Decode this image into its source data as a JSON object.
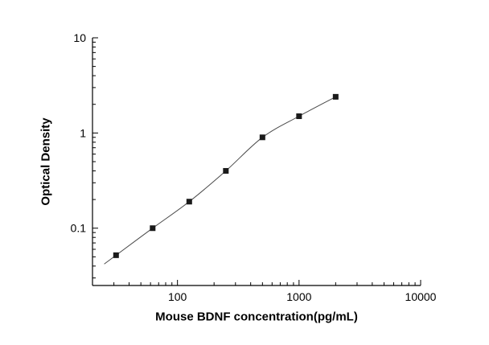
{
  "chart_data": {
    "type": "scatter",
    "title": "",
    "xlabel": "Mouse BDNF concentration(pg/mL)",
    "ylabel": "Optical Density",
    "x_scale": "log",
    "y_scale": "log",
    "xlim": [
      20,
      10000
    ],
    "ylim": [
      0.025,
      10
    ],
    "x_major_ticks": [
      100,
      1000,
      10000
    ],
    "x_tick_labels": [
      "100",
      "1000",
      "10000"
    ],
    "y_major_ticks": [
      0.1,
      1,
      10
    ],
    "y_tick_labels": [
      "0.1",
      "1",
      "10"
    ],
    "grid": "off",
    "legend": "none",
    "points": [
      {
        "x": 31.25,
        "y": 0.052
      },
      {
        "x": 62.5,
        "y": 0.1
      },
      {
        "x": 125,
        "y": 0.19
      },
      {
        "x": 250,
        "y": 0.4
      },
      {
        "x": 500,
        "y": 0.9
      },
      {
        "x": 1000,
        "y": 1.5
      },
      {
        "x": 2000,
        "y": 2.4
      }
    ],
    "curve_start": {
      "x": 25,
      "y": 0.042
    },
    "marker": {
      "shape": "square",
      "color": "#1a1a1a",
      "size": 7
    },
    "line_color": "#4a4a4a",
    "axis_color": "#000000",
    "tick_font_px": 14
  }
}
